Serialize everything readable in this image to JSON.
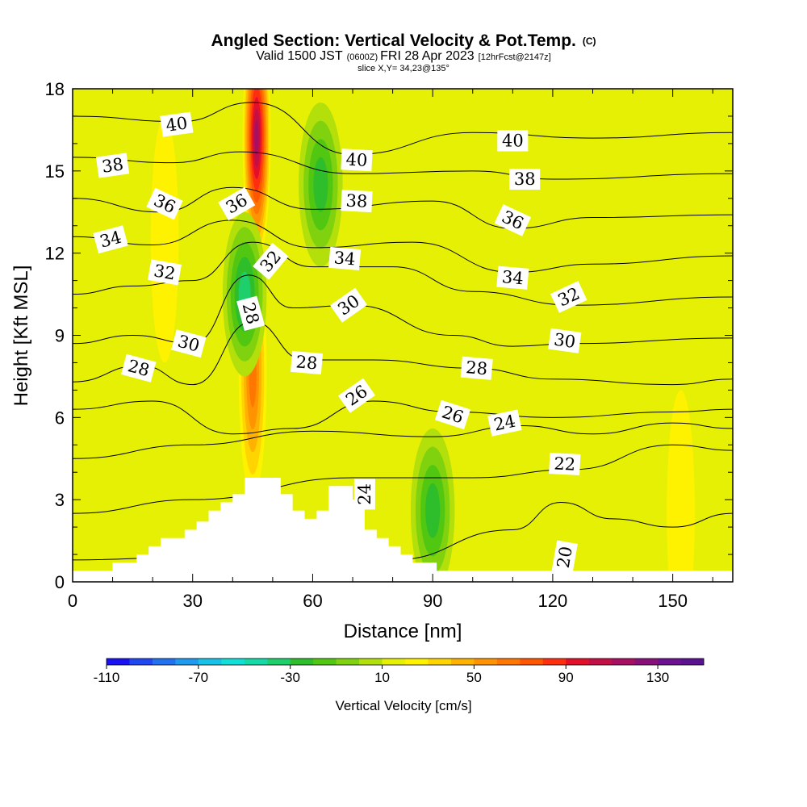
{
  "chart_data": {
    "type": "heatmap",
    "title": "Angled Section: Vertical Velocity & Pot.Temp.",
    "title_suffix": "(C)",
    "subtitle": {
      "valid": "Valid 1500 JST",
      "utc": "(0600Z)",
      "date": "FRI 28 Apr 2023",
      "forecast": "[12hrFcst@2147z]"
    },
    "slice_label": "slice X,Y= 34,23@135°",
    "xlabel": "Distance [nm]",
    "ylabel": "Height [Kft MSL]",
    "xlim": [
      0,
      165
    ],
    "ylim": [
      0,
      18
    ],
    "xticks": [
      0,
      30,
      60,
      90,
      120,
      150
    ],
    "yticks": [
      0,
      3,
      6,
      9,
      12,
      15,
      18
    ],
    "colorbar": {
      "label": "Vertical Velocity [cm/s]",
      "min": -110,
      "max": 150,
      "step": 10,
      "tick_labels": [
        -110,
        -70,
        -30,
        10,
        50,
        90,
        130
      ],
      "colors": [
        "#1a12f2",
        "#1f47f2",
        "#2171f0",
        "#1f9aee",
        "#18c1e8",
        "#12dfd8",
        "#15d9a7",
        "#1fcf6c",
        "#2fbe2b",
        "#52c712",
        "#80d20e",
        "#b3e00a",
        "#e6f005",
        "#fff200",
        "#ffd400",
        "#ffb300",
        "#ff9400",
        "#ff7600",
        "#ff5600",
        "#ff2e10",
        "#e2102a",
        "#c40f46",
        "#a60f62",
        "#88107a",
        "#6c1190",
        "#5a1291"
      ]
    },
    "background_level": 10,
    "velocity_features": [
      {
        "kind": "updraft",
        "x": 46,
        "y": 16.2,
        "peak": 110
      },
      {
        "kind": "updraft",
        "x": 45,
        "y": 7.6,
        "peak": 60
      },
      {
        "kind": "downdraft",
        "x": 43,
        "y": 10.5,
        "peak": -45
      },
      {
        "kind": "downdraft",
        "x": 62,
        "y": 14.5,
        "peak": -30
      },
      {
        "kind": "downdraft",
        "x": 90,
        "y": 2.6,
        "peak": -30
      },
      {
        "kind": "updraft",
        "x": 23,
        "y": 12.5,
        "peak": 20
      },
      {
        "kind": "updraft",
        "x": 152,
        "y": 2.5,
        "peak": 25
      }
    ],
    "terrain_kft": [
      [
        0,
        0.4
      ],
      [
        10,
        0.4
      ],
      [
        10,
        0.7
      ],
      [
        16,
        0.7
      ],
      [
        16,
        1.0
      ],
      [
        19,
        1.0
      ],
      [
        19,
        1.3
      ],
      [
        22,
        1.3
      ],
      [
        22,
        1.6
      ],
      [
        28,
        1.6
      ],
      [
        28,
        1.9
      ],
      [
        31,
        1.9
      ],
      [
        31,
        2.2
      ],
      [
        34,
        2.2
      ],
      [
        34,
        2.6
      ],
      [
        37,
        2.6
      ],
      [
        37,
        2.9
      ],
      [
        40,
        2.9
      ],
      [
        40,
        3.2
      ],
      [
        43,
        3.2
      ],
      [
        43,
        3.8
      ],
      [
        52,
        3.8
      ],
      [
        52,
        3.2
      ],
      [
        55,
        3.2
      ],
      [
        55,
        2.6
      ],
      [
        58,
        2.6
      ],
      [
        58,
        2.3
      ],
      [
        61,
        2.3
      ],
      [
        61,
        2.6
      ],
      [
        64,
        2.6
      ],
      [
        64,
        3.5
      ],
      [
        70,
        3.5
      ],
      [
        70,
        3.0
      ],
      [
        73,
        3.0
      ],
      [
        73,
        1.9
      ],
      [
        76,
        1.9
      ],
      [
        76,
        1.6
      ],
      [
        79,
        1.6
      ],
      [
        79,
        1.3
      ],
      [
        82,
        1.3
      ],
      [
        82,
        1.0
      ],
      [
        85,
        1.0
      ],
      [
        85,
        0.7
      ],
      [
        91,
        0.7
      ],
      [
        91,
        0.4
      ],
      [
        165,
        0.4
      ]
    ],
    "isentropes": [
      {
        "theta": 20,
        "label": "20",
        "points": [
          [
            0,
            0.8
          ],
          [
            30,
            0.9
          ],
          [
            80,
            0.8
          ],
          [
            110,
            1.9
          ],
          [
            122,
            2.9
          ],
          [
            135,
            2.3
          ],
          [
            150,
            2.0
          ],
          [
            165,
            2.5
          ]
        ]
      },
      {
        "theta": 22,
        "label": "22",
        "points": [
          [
            0,
            2.5
          ],
          [
            30,
            3.0
          ],
          [
            70,
            3.8
          ],
          [
            100,
            3.8
          ],
          [
            125,
            4.1
          ],
          [
            150,
            5.0
          ],
          [
            165,
            4.8
          ]
        ]
      },
      {
        "theta": 24,
        "label": "24",
        "points": [
          [
            0,
            4.5
          ],
          [
            30,
            5.0
          ],
          [
            60,
            5.5
          ],
          [
            90,
            5.3
          ],
          [
            112,
            5.7
          ],
          [
            130,
            5.4
          ],
          [
            150,
            5.8
          ],
          [
            165,
            5.6
          ]
        ]
      },
      {
        "theta": 26,
        "label": "26",
        "points": [
          [
            0,
            6.3
          ],
          [
            20,
            6.6
          ],
          [
            40,
            5.4
          ],
          [
            55,
            5.6
          ],
          [
            75,
            6.6
          ],
          [
            95,
            6.2
          ],
          [
            120,
            6.0
          ],
          [
            150,
            6.2
          ],
          [
            165,
            6.3
          ]
        ]
      },
      {
        "theta": 28,
        "label": "28",
        "points": [
          [
            0,
            7.3
          ],
          [
            17,
            7.9
          ],
          [
            30,
            7.2
          ],
          [
            45,
            9.5
          ],
          [
            58,
            8.1
          ],
          [
            75,
            8.1
          ],
          [
            100,
            7.8
          ],
          [
            120,
            7.4
          ],
          [
            150,
            7.2
          ],
          [
            165,
            7.4
          ]
        ]
      },
      {
        "theta": 30,
        "label": "30",
        "points": [
          [
            0,
            8.7
          ],
          [
            15,
            9.0
          ],
          [
            30,
            8.7
          ],
          [
            44,
            11.2
          ],
          [
            55,
            10.0
          ],
          [
            70,
            10.1
          ],
          [
            95,
            9.0
          ],
          [
            110,
            8.6
          ],
          [
            125,
            8.7
          ],
          [
            165,
            8.9
          ]
        ]
      },
      {
        "theta": 32,
        "label": "32",
        "points": [
          [
            0,
            10.5
          ],
          [
            15,
            10.8
          ],
          [
            30,
            11.0
          ],
          [
            45,
            12.4
          ],
          [
            60,
            11.5
          ],
          [
            80,
            11.5
          ],
          [
            100,
            10.6
          ],
          [
            125,
            10.1
          ],
          [
            165,
            10.4
          ]
        ]
      },
      {
        "theta": 34,
        "label": "34",
        "points": [
          [
            0,
            12.6
          ],
          [
            20,
            12.3
          ],
          [
            40,
            13.2
          ],
          [
            60,
            12.2
          ],
          [
            85,
            12.4
          ],
          [
            110,
            11.3
          ],
          [
            130,
            11.6
          ],
          [
            165,
            11.9
          ]
        ]
      },
      {
        "theta": 36,
        "label": "36",
        "points": [
          [
            0,
            14.0
          ],
          [
            22,
            13.5
          ],
          [
            40,
            14.4
          ],
          [
            60,
            13.6
          ],
          [
            90,
            13.9
          ],
          [
            110,
            12.9
          ],
          [
            130,
            13.3
          ],
          [
            165,
            13.4
          ]
        ]
      },
      {
        "theta": 38,
        "label": "38",
        "points": [
          [
            0,
            15.5
          ],
          [
            25,
            15.3
          ],
          [
            42,
            15.7
          ],
          [
            70,
            14.9
          ],
          [
            100,
            15.0
          ],
          [
            120,
            14.7
          ],
          [
            165,
            14.9
          ]
        ]
      },
      {
        "theta": 40,
        "label": "40",
        "points": [
          [
            0,
            17.0
          ],
          [
            27,
            16.8
          ],
          [
            45,
            17.5
          ],
          [
            70,
            15.6
          ],
          [
            100,
            16.4
          ],
          [
            130,
            16.2
          ],
          [
            165,
            16.4
          ]
        ]
      }
    ],
    "contour_labels": [
      {
        "text": "40",
        "x": 26,
        "y": 16.7,
        "angle": 8
      },
      {
        "text": "38",
        "x": 10,
        "y": 15.2,
        "angle": 8
      },
      {
        "text": "36",
        "x": 23,
        "y": 13.8,
        "angle": -25
      },
      {
        "text": "34",
        "x": 9.5,
        "y": 12.5,
        "angle": 15
      },
      {
        "text": "32",
        "x": 23,
        "y": 11.3,
        "angle": -10
      },
      {
        "text": "30",
        "x": 29,
        "y": 8.7,
        "angle": -15
      },
      {
        "text": "28",
        "x": 16.5,
        "y": 7.8,
        "angle": -15
      },
      {
        "text": "36",
        "x": 41,
        "y": 13.8,
        "angle": 30
      },
      {
        "text": "32",
        "x": 49.5,
        "y": 11.7,
        "angle": 50
      },
      {
        "text": "28",
        "x": 44.5,
        "y": 9.8,
        "angle": -75
      },
      {
        "text": "40",
        "x": 71,
        "y": 15.4,
        "angle": -3
      },
      {
        "text": "38",
        "x": 71,
        "y": 13.9,
        "angle": -3
      },
      {
        "text": "34",
        "x": 68,
        "y": 11.8,
        "angle": -5
      },
      {
        "text": "30",
        "x": 69,
        "y": 10.1,
        "angle": 35
      },
      {
        "text": "28",
        "x": 58.5,
        "y": 8.0,
        "angle": -5
      },
      {
        "text": "26",
        "x": 71,
        "y": 6.8,
        "angle": 35
      },
      {
        "text": "24",
        "x": 73,
        "y": 3.2,
        "angle": 90
      },
      {
        "text": "40",
        "x": 110,
        "y": 16.1,
        "angle": 0
      },
      {
        "text": "38",
        "x": 113,
        "y": 14.7,
        "angle": 0
      },
      {
        "text": "36",
        "x": 110,
        "y": 13.2,
        "angle": -25
      },
      {
        "text": "34",
        "x": 110,
        "y": 11.1,
        "angle": -5
      },
      {
        "text": "32",
        "x": 124,
        "y": 10.4,
        "angle": 25
      },
      {
        "text": "30",
        "x": 123,
        "y": 8.8,
        "angle": -8
      },
      {
        "text": "28",
        "x": 101,
        "y": 7.8,
        "angle": -5
      },
      {
        "text": "26",
        "x": 95,
        "y": 6.1,
        "angle": -18
      },
      {
        "text": "24",
        "x": 108,
        "y": 5.8,
        "angle": 12
      },
      {
        "text": "22",
        "x": 123,
        "y": 4.3,
        "angle": -3
      },
      {
        "text": "20",
        "x": 123,
        "y": 0.9,
        "angle": 80
      }
    ]
  }
}
